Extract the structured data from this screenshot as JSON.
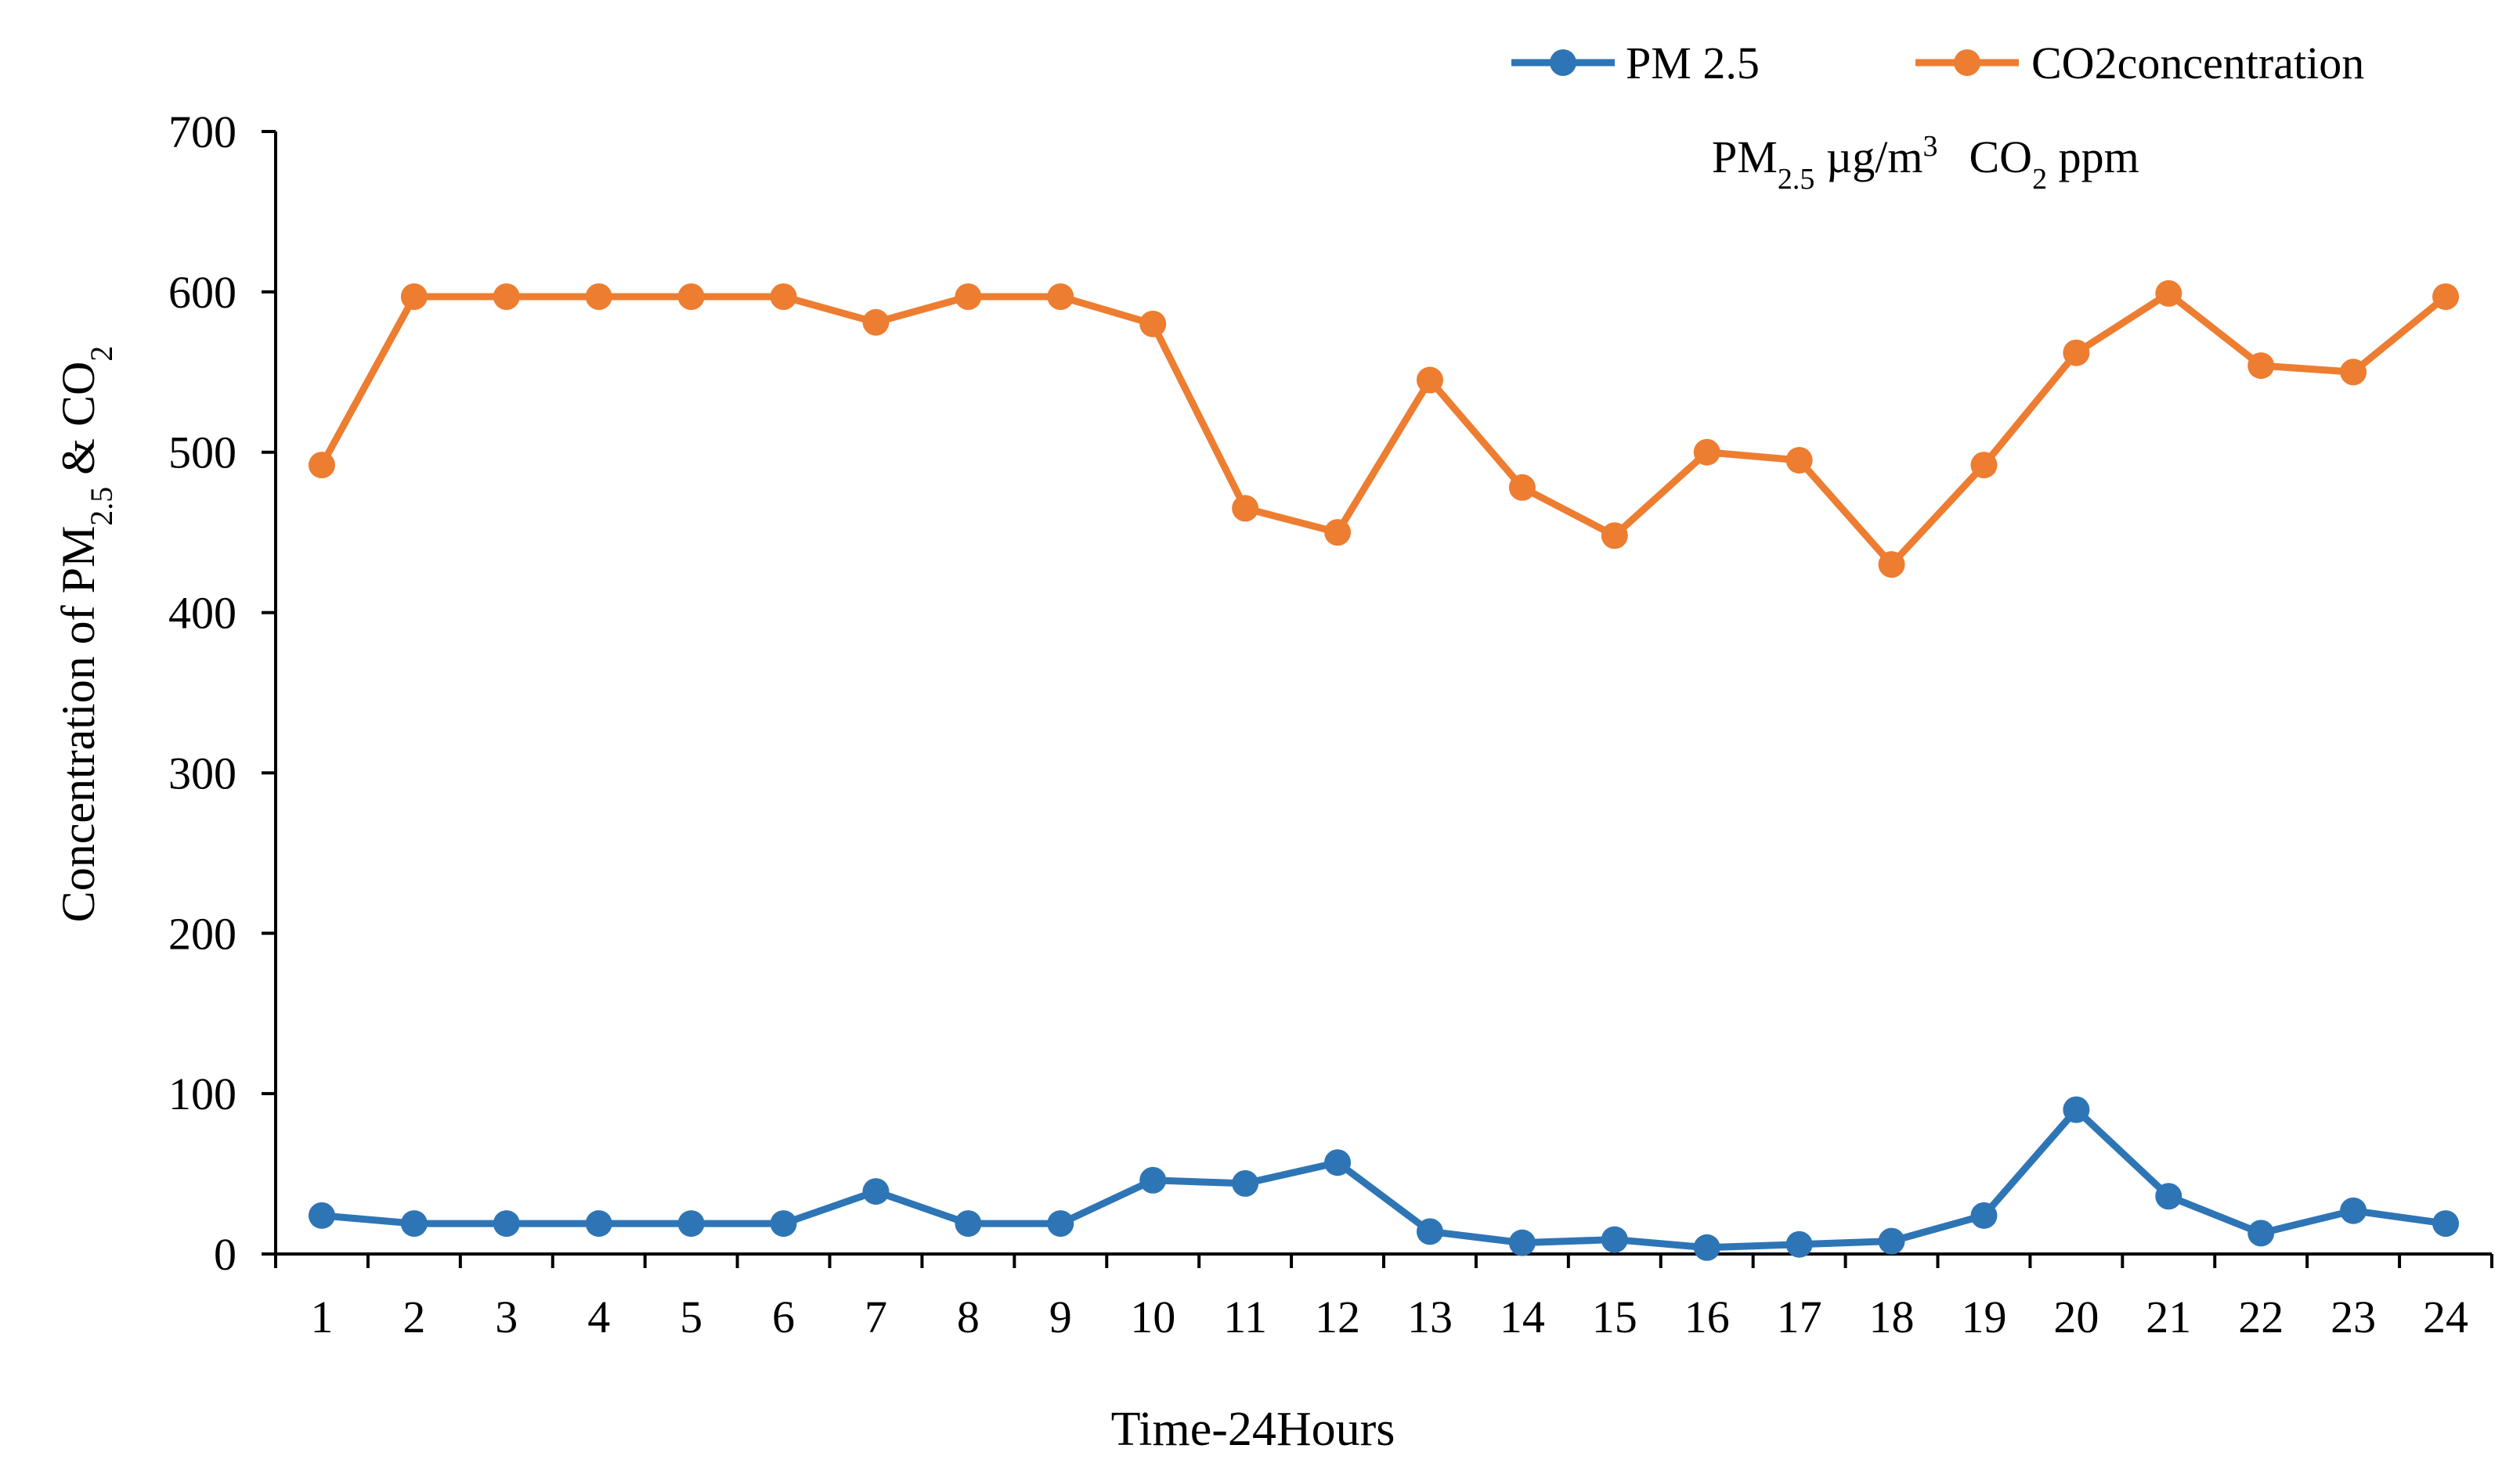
{
  "chart_data": {
    "type": "line",
    "title": "",
    "xlabel": "Time-24Hours",
    "ylabel": {
      "prefix": "Concentration of PM",
      "sub1": "2.5",
      "mid": " & CO",
      "sub2": "2"
    },
    "categories": [
      "1",
      "2",
      "3",
      "4",
      "5",
      "6",
      "7",
      "8",
      "9",
      "10",
      "11",
      "12",
      "13",
      "14",
      "15",
      "16",
      "17",
      "18",
      "19",
      "20",
      "21",
      "22",
      "23",
      "24"
    ],
    "ylim": [
      0,
      700
    ],
    "yticks": [
      0,
      100,
      200,
      300,
      400,
      500,
      600,
      700
    ],
    "grid": false,
    "legend_position": "top-right",
    "units_note": {
      "pm": "PM",
      "pm_sub": "2.5",
      "pm_unit": " µg/m",
      "pm_sup": "3",
      "co": "CO",
      "co_sub": "2",
      "co_unit": " ppm"
    },
    "series": [
      {
        "name": "PM 2.5",
        "color": "#2e75b6",
        "values": [
          24,
          19,
          19,
          19,
          19,
          19,
          39,
          19,
          19,
          46,
          44,
          57,
          14,
          7,
          9,
          4,
          6,
          8,
          24,
          90,
          36,
          13,
          27,
          19
        ]
      },
      {
        "name": "CO2concentration",
        "color": "#ed7d31",
        "values": [
          492,
          597,
          597,
          597,
          597,
          597,
          581,
          597,
          597,
          580,
          465,
          450,
          545,
          478,
          448,
          500,
          495,
          430,
          492,
          562,
          599,
          554,
          550,
          597
        ]
      }
    ]
  }
}
